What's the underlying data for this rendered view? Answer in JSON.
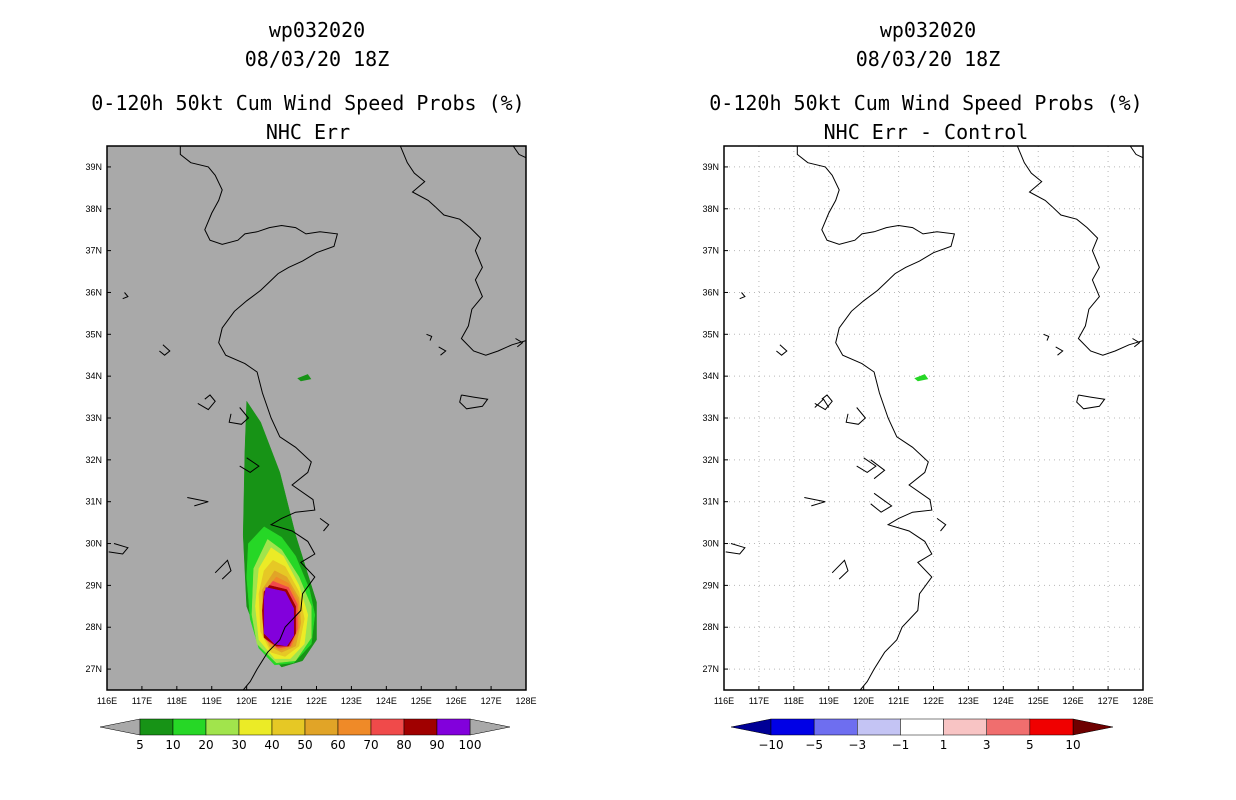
{
  "chart_data": [
    {
      "type": "heatmap",
      "panel": "left",
      "titles": [
        "wp032020",
        "08/03/20 18Z",
        "0-120h 50kt Cum Wind Speed Probs (%)",
        "NHC Err"
      ],
      "x_ticks": [
        "116E",
        "117E",
        "118E",
        "119E",
        "120E",
        "121E",
        "122E",
        "123E",
        "124E",
        "125E",
        "126E",
        "127E",
        "128E"
      ],
      "y_ticks": [
        "27N",
        "28N",
        "29N",
        "30N",
        "31N",
        "32N",
        "33N",
        "34N",
        "35N",
        "36N",
        "37N",
        "38N",
        "39N"
      ],
      "xlim": [
        116,
        128
      ],
      "ylim": [
        26.5,
        39.5
      ],
      "background_color": "#a9a9a9",
      "grid": false,
      "colorbar": {
        "labels": [
          "5",
          "10",
          "20",
          "30",
          "40",
          "50",
          "60",
          "70",
          "80",
          "90",
          "100"
        ],
        "colors": [
          "#179316",
          "#26d726",
          "#a1e44c",
          "#ebeb26",
          "#e6c825",
          "#e1a427",
          "#ef8a28",
          "#f04a4a",
          "#a00000",
          "#8200dc"
        ],
        "extend_color": "#a9a9a9"
      },
      "probability_contours": [
        {
          "level": 5,
          "color": "#179316",
          "polygon": [
            [
              120.0,
              33.4
            ],
            [
              120.4,
              32.9
            ],
            [
              120.95,
              31.7
            ],
            [
              121.4,
              30.2
            ],
            [
              122.0,
              28.6
            ],
            [
              122.0,
              27.7
            ],
            [
              121.6,
              27.2
            ],
            [
              121.0,
              27.05
            ],
            [
              120.4,
              27.6
            ],
            [
              120.0,
              28.5
            ],
            [
              119.9,
              30.2
            ],
            [
              119.95,
              32.2
            ]
          ]
        },
        {
          "level": 10,
          "color": "#26d726",
          "polygon": [
            [
              120.5,
              30.4
            ],
            [
              121.0,
              30.15
            ],
            [
              121.4,
              29.7
            ],
            [
              121.8,
              28.9
            ],
            [
              121.95,
              28.3
            ],
            [
              121.85,
              27.6
            ],
            [
              121.35,
              27.15
            ],
            [
              120.8,
              27.1
            ],
            [
              120.35,
              27.5
            ],
            [
              120.1,
              28.2
            ],
            [
              120.0,
              29.2
            ],
            [
              120.05,
              30.0
            ]
          ]
        },
        {
          "level": 20,
          "color": "#a1e44c",
          "polygon": [
            [
              120.6,
              30.1
            ],
            [
              121.0,
              29.85
            ],
            [
              121.5,
              29.2
            ],
            [
              121.85,
              28.5
            ],
            [
              121.85,
              27.75
            ],
            [
              121.4,
              27.2
            ],
            [
              120.85,
              27.15
            ],
            [
              120.3,
              27.6
            ],
            [
              120.15,
              28.3
            ],
            [
              120.2,
              29.4
            ]
          ]
        },
        {
          "level": 30,
          "color": "#ebeb26",
          "polygon": [
            [
              120.7,
              29.9
            ],
            [
              121.05,
              29.7
            ],
            [
              121.5,
              29.0
            ],
            [
              121.75,
              28.3
            ],
            [
              121.65,
              27.6
            ],
            [
              121.25,
              27.25
            ],
            [
              120.8,
              27.25
            ],
            [
              120.35,
              27.7
            ],
            [
              120.25,
              28.5
            ],
            [
              120.35,
              29.4
            ]
          ]
        },
        {
          "level": 40,
          "color": "#e6c825",
          "polygon": [
            [
              120.75,
              29.6
            ],
            [
              121.1,
              29.45
            ],
            [
              121.5,
              28.85
            ],
            [
              121.65,
              28.2
            ],
            [
              121.5,
              27.55
            ],
            [
              121.1,
              27.3
            ],
            [
              120.7,
              27.4
            ],
            [
              120.4,
              27.9
            ],
            [
              120.35,
              28.8
            ],
            [
              120.5,
              29.35
            ]
          ]
        },
        {
          "level": 50,
          "color": "#e1a427",
          "polygon": [
            [
              120.8,
              29.35
            ],
            [
              121.15,
              29.2
            ],
            [
              121.5,
              28.7
            ],
            [
              121.55,
              28.1
            ],
            [
              121.4,
              27.55
            ],
            [
              121.0,
              27.4
            ],
            [
              120.65,
              27.55
            ],
            [
              120.45,
              28.1
            ],
            [
              120.45,
              28.9
            ]
          ]
        },
        {
          "level": 60,
          "color": "#ef8a28",
          "polygon": [
            [
              120.85,
              29.2
            ],
            [
              121.2,
              29.05
            ],
            [
              121.5,
              28.6
            ],
            [
              121.5,
              28.0
            ],
            [
              121.3,
              27.55
            ],
            [
              120.95,
              27.45
            ],
            [
              120.6,
              27.65
            ],
            [
              120.45,
              28.2
            ],
            [
              120.5,
              28.85
            ]
          ]
        },
        {
          "level": 70,
          "color": "#f04a4a",
          "polygon": [
            [
              120.75,
              29.1
            ],
            [
              121.2,
              28.95
            ],
            [
              121.45,
              28.55
            ],
            [
              121.45,
              27.95
            ],
            [
              121.25,
              27.55
            ],
            [
              120.9,
              27.5
            ],
            [
              120.55,
              27.7
            ],
            [
              120.45,
              28.3
            ],
            [
              120.5,
              28.85
            ]
          ]
        },
        {
          "level": 80,
          "color": "#a00000",
          "polygon": [
            [
              120.65,
              29.0
            ],
            [
              121.15,
              28.9
            ],
            [
              121.4,
              28.5
            ],
            [
              121.4,
              27.85
            ],
            [
              121.2,
              27.55
            ],
            [
              120.85,
              27.55
            ],
            [
              120.5,
              27.75
            ],
            [
              120.45,
              28.4
            ],
            [
              120.5,
              28.85
            ]
          ]
        },
        {
          "level": 90,
          "color": "#8200dc",
          "polygon": [
            [
              120.55,
              28.95
            ],
            [
              121.1,
              28.85
            ],
            [
              121.35,
              28.45
            ],
            [
              121.35,
              27.8
            ],
            [
              121.15,
              27.55
            ],
            [
              120.8,
              27.6
            ],
            [
              120.5,
              27.85
            ],
            [
              120.5,
              28.7
            ]
          ]
        }
      ],
      "extra_area": {
        "level": 5,
        "color": "#179316",
        "polygon": [
          [
            121.45,
            33.95
          ],
          [
            121.75,
            34.05
          ],
          [
            121.85,
            33.93
          ],
          [
            121.55,
            33.88
          ]
        ]
      }
    },
    {
      "type": "heatmap",
      "panel": "right",
      "titles": [
        "wp032020",
        "08/03/20 18Z",
        "0-120h 50kt Cum Wind Speed Probs (%)",
        "NHC Err - Control"
      ],
      "x_ticks": [
        "116E",
        "117E",
        "118E",
        "119E",
        "120E",
        "121E",
        "122E",
        "123E",
        "124E",
        "125E",
        "126E",
        "127E",
        "128E"
      ],
      "y_ticks": [
        "27N",
        "28N",
        "29N",
        "30N",
        "31N",
        "32N",
        "33N",
        "34N",
        "35N",
        "36N",
        "37N",
        "38N",
        "39N"
      ],
      "xlim": [
        116,
        128
      ],
      "ylim": [
        26.5,
        39.5
      ],
      "background_color": "#ffffff",
      "grid": true,
      "colorbar": {
        "labels": [
          "-10",
          "-5",
          "-3",
          "-1",
          "1",
          "3",
          "5",
          "10"
        ],
        "colors": [
          "#0000e6",
          "#6e6ef0",
          "#c4c4f4",
          "#ffffff",
          "#f8c4c4",
          "#f06e6e",
          "#f00000"
        ],
        "extend_low_color": "#000096",
        "extend_high_color": "#6e0000"
      },
      "extra_area": {
        "level": 1,
        "color": "#26d726",
        "polygon": [
          [
            121.45,
            33.95
          ],
          [
            121.75,
            34.05
          ],
          [
            121.85,
            33.93
          ],
          [
            121.55,
            33.88
          ]
        ]
      }
    }
  ]
}
